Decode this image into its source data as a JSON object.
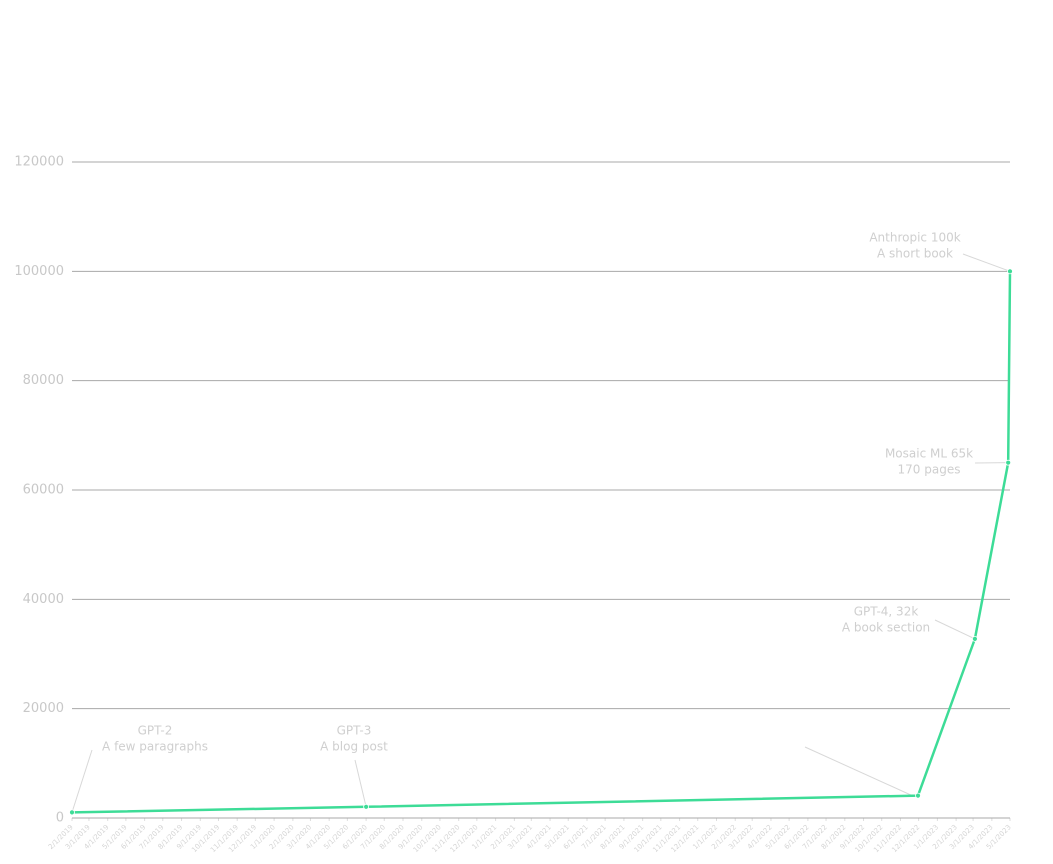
{
  "chart_data": {
    "type": "line",
    "x": [
      "2/1/2019",
      "6/1/2020",
      "11/30/2022",
      "3/4/2023",
      "4/28/2023",
      "5/1/2023"
    ],
    "series": [
      {
        "color": "#3ddc97",
        "values": [
          1024,
          2048,
          4096,
          32768,
          65000,
          100000
        ]
      }
    ],
    "point_labels": [
      [
        "GPT-2",
        "A few paragraphs"
      ],
      [
        "GPT-3",
        "A blog post"
      ],
      null,
      [
        "GPT-4, 32k",
        "A book section"
      ],
      [
        "Mosaic ML 65k",
        "170 pages"
      ],
      [
        "Anthropic 100k",
        "A short book"
      ]
    ],
    "xlim": [
      "2/1/2019",
      "5/1/2023"
    ],
    "xticks": [
      "2/1/2019",
      "3/1/2019",
      "4/1/2019",
      "5/1/2019",
      "6/1/2019",
      "7/1/2019",
      "8/1/2019",
      "9/1/2019",
      "10/1/2019",
      "11/1/2019",
      "12/1/2019",
      "1/1/2020",
      "2/1/2020",
      "3/1/2020",
      "4/1/2020",
      "5/1/2020",
      "6/1/2020",
      "7/1/2020",
      "8/1/2020",
      "9/1/2020",
      "10/1/2020",
      "11/1/2020",
      "12/1/2020",
      "1/1/2021",
      "2/1/2021",
      "3/1/2021",
      "4/1/2021",
      "5/1/2021",
      "6/1/2021",
      "7/1/2021",
      "8/1/2021",
      "9/1/2021",
      "10/1/2021",
      "11/1/2021",
      "12/1/2021",
      "1/1/2022",
      "2/1/2022",
      "3/1/2022",
      "4/1/2022",
      "5/1/2022",
      "6/1/2022",
      "7/1/2022",
      "8/1/2022",
      "9/1/2022",
      "10/1/2022",
      "11/1/2022",
      "12/1/2022",
      "1/1/2023",
      "2/1/2023",
      "3/1/2023",
      "4/1/2023",
      "5/1/2023"
    ],
    "ylim": [
      0,
      120000
    ],
    "yticks": [
      0,
      20000,
      40000,
      60000,
      80000,
      100000,
      120000
    ],
    "grid": true
  }
}
